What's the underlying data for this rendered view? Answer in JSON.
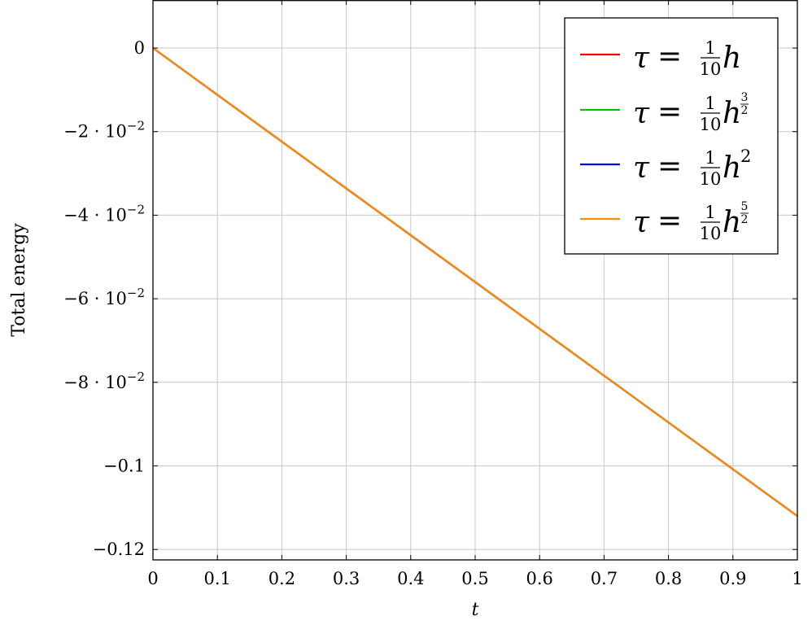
{
  "chart_data": {
    "type": "line",
    "xlabel": "t",
    "ylabel": "Total energy",
    "xlim": [
      0,
      1
    ],
    "ylim": [
      -0.1225,
      0.0115
    ],
    "grid": true,
    "legend_position": "top-right",
    "x_ticks": [
      {
        "value": 0,
        "label": "0"
      },
      {
        "value": 0.1,
        "label": "0.1"
      },
      {
        "value": 0.2,
        "label": "0.2"
      },
      {
        "value": 0.3,
        "label": "0.3"
      },
      {
        "value": 0.4,
        "label": "0.4"
      },
      {
        "value": 0.5,
        "label": "0.5"
      },
      {
        "value": 0.6,
        "label": "0.6"
      },
      {
        "value": 0.7,
        "label": "0.7"
      },
      {
        "value": 0.8,
        "label": "0.8"
      },
      {
        "value": 0.9,
        "label": "0.9"
      },
      {
        "value": 1,
        "label": "1"
      }
    ],
    "y_ticks": [
      {
        "value": 0,
        "mant": "0",
        "exp": ""
      },
      {
        "value": -0.02,
        "mant": "−2 · 10",
        "exp": "−2"
      },
      {
        "value": -0.04,
        "mant": "−4 · 10",
        "exp": "−2"
      },
      {
        "value": -0.06,
        "mant": "−6 · 10",
        "exp": "−2"
      },
      {
        "value": -0.08,
        "mant": "−8 · 10",
        "exp": "−2"
      },
      {
        "value": -0.1,
        "mant": "−0.1",
        "exp": ""
      },
      {
        "value": -0.12,
        "mant": "−0.12",
        "exp": ""
      }
    ],
    "series": [
      {
        "name": "τ = (1/10) h",
        "color": "#ff0000",
        "sup_num": "",
        "sup_den": "",
        "sup": "",
        "x": [
          0,
          0.1,
          0.2,
          0.3,
          0.4,
          0.5,
          0.6,
          0.7,
          0.8,
          0.9,
          1.0
        ],
        "y": [
          0,
          -0.0112,
          -0.0224,
          -0.0336,
          -0.0448,
          -0.056,
          -0.0672,
          -0.0784,
          -0.0896,
          -0.1008,
          -0.112
        ]
      },
      {
        "name": "τ = (1/10) h^(3/2)",
        "color": "#00c000",
        "sup_num": "3",
        "sup_den": "2",
        "sup": "",
        "x": [
          0,
          0.1,
          0.2,
          0.3,
          0.4,
          0.5,
          0.6,
          0.7,
          0.8,
          0.9,
          1.0
        ],
        "y": [
          0,
          -0.0112,
          -0.0224,
          -0.0336,
          -0.0448,
          -0.056,
          -0.0672,
          -0.0784,
          -0.0896,
          -0.1008,
          -0.112
        ]
      },
      {
        "name": "τ = (1/10) h^2",
        "color": "#0000ff",
        "sup_num": "",
        "sup_den": "",
        "sup": "2",
        "x": [
          0,
          0.1,
          0.2,
          0.3,
          0.4,
          0.5,
          0.6,
          0.7,
          0.8,
          0.9,
          1.0
        ],
        "y": [
          0,
          -0.0112,
          -0.0224,
          -0.0336,
          -0.0448,
          -0.056,
          -0.0672,
          -0.0784,
          -0.0896,
          -0.1008,
          -0.112
        ]
      },
      {
        "name": "τ = (1/10) h^(5/2)",
        "color": "#ff8c00",
        "sup_num": "5",
        "sup_den": "2",
        "sup": "",
        "x": [
          0,
          0.1,
          0.2,
          0.3,
          0.4,
          0.5,
          0.6,
          0.7,
          0.8,
          0.9,
          1.0
        ],
        "y": [
          0,
          -0.0112,
          -0.0224,
          -0.0336,
          -0.0448,
          -0.056,
          -0.0672,
          -0.0784,
          -0.0896,
          -0.1008,
          -0.112
        ]
      }
    ]
  },
  "legend_parts": {
    "tau": "τ",
    "equals": "=",
    "frac_num": "1",
    "frac_den": "10",
    "h": "h"
  }
}
